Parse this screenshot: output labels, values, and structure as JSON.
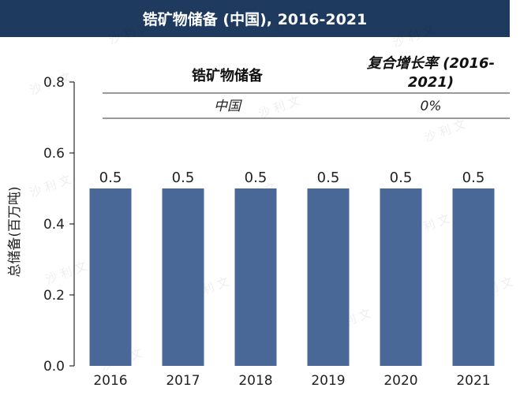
{
  "title": "锆矿物储备 (中国), 2016-2021",
  "table": {
    "col1_header": "锆矿物储备",
    "col2_header_line1": "复合增长率 (2016-",
    "col2_header_line2": "2021)",
    "row_label": "中国",
    "row_value": "0%"
  },
  "watermark_text": "沙 利 文",
  "colors": {
    "title_bg": "#1f3a5f",
    "bar": "#4a6897"
  },
  "chart_data": {
    "type": "bar",
    "categories": [
      "2016",
      "2017",
      "2018",
      "2019",
      "2020",
      "2021"
    ],
    "values": [
      0.5,
      0.5,
      0.5,
      0.5,
      0.5,
      0.5
    ],
    "data_labels": [
      "0.5",
      "0.5",
      "0.5",
      "0.5",
      "0.5",
      "0.5"
    ],
    "ylabel": "总储备(百万吨)",
    "ylim": [
      0,
      0.8
    ],
    "yticks": [
      "0.0",
      "0.2",
      "0.4",
      "0.6",
      "0.8"
    ],
    "grid": false
  }
}
